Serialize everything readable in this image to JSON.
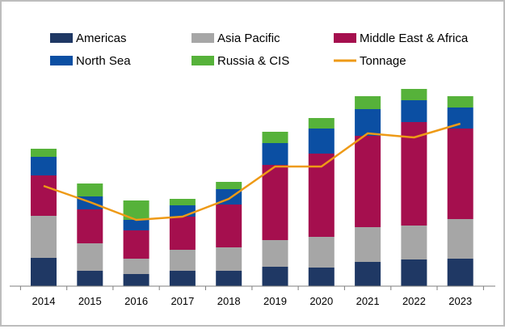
{
  "chart_data": {
    "type": "bar",
    "stacked": true,
    "categories": [
      "2014",
      "2015",
      "2016",
      "2017",
      "2018",
      "2019",
      "2020",
      "2021",
      "2022",
      "2023"
    ],
    "series": [
      {
        "name": "Americas",
        "color": "#1f3864",
        "values": [
          35,
          19,
          15,
          19,
          19,
          24,
          23,
          30,
          33,
          34
        ]
      },
      {
        "name": "Asia Pacific",
        "color": "#a6a6a6",
        "values": [
          52,
          34,
          19,
          26,
          29,
          33,
          38,
          43,
          42,
          49
        ]
      },
      {
        "name": "Middle East & Africa",
        "color": "#a50f4e",
        "values": [
          50,
          42,
          35,
          41,
          53,
          93,
          103,
          113,
          128,
          112
        ]
      },
      {
        "name": "North Sea",
        "color": "#0b4fa3",
        "values": [
          23,
          16,
          13,
          14,
          19,
          27,
          31,
          33,
          27,
          26
        ]
      },
      {
        "name": "Russia & CIS",
        "color": "#56b23a",
        "values": [
          10,
          16,
          24,
          8,
          9,
          14,
          13,
          16,
          14,
          14
        ]
      }
    ],
    "line_series": {
      "name": "Tonnage",
      "color": "#ee9a16",
      "values": [
        124,
        104,
        82,
        86,
        108,
        148,
        148,
        189,
        184,
        201
      ]
    },
    "ylim": [
      0,
      260
    ],
    "legend_position": "top",
    "grid": false,
    "title": "",
    "xlabel": "",
    "ylabel": ""
  }
}
